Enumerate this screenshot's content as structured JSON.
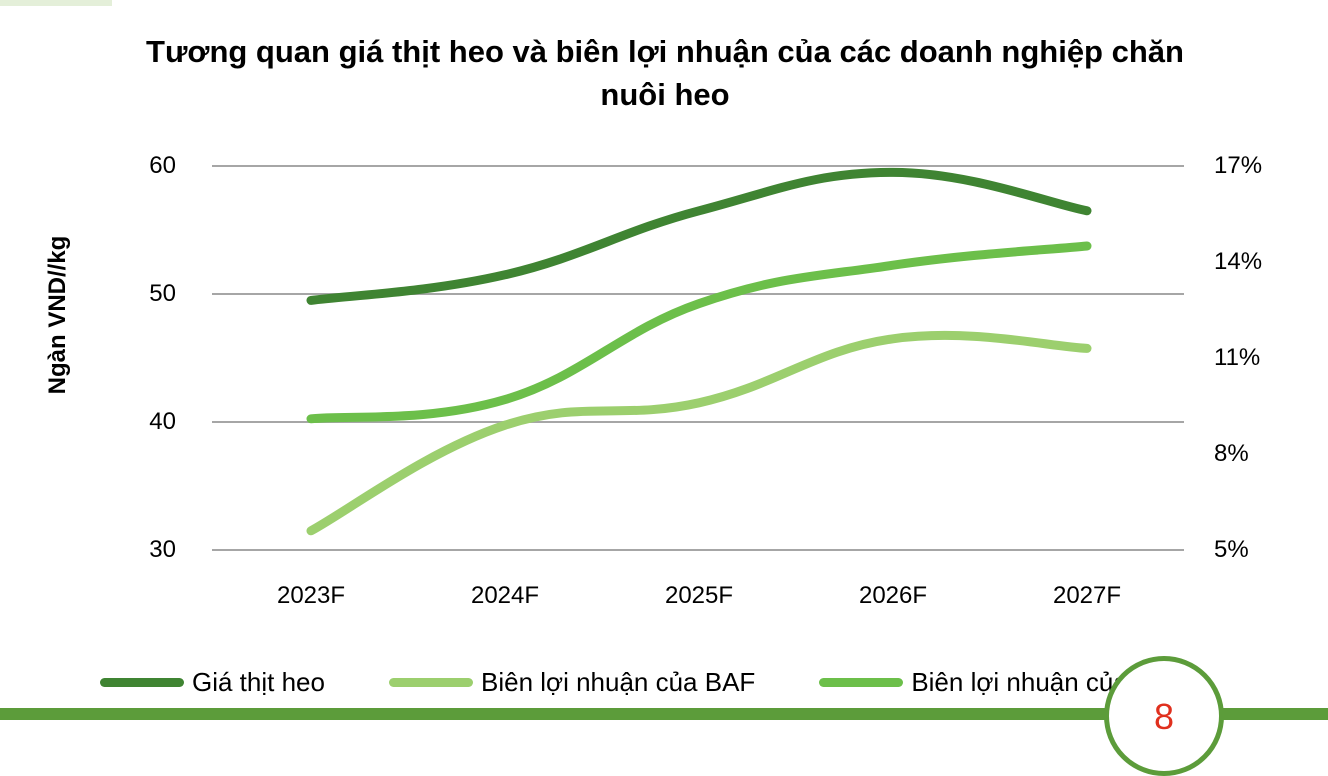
{
  "page": {
    "number": "8"
  },
  "colors": {
    "accent": "#5c9c3a",
    "page_number": "#e0301e",
    "grid": "#a6a6a6"
  },
  "chart_data": {
    "type": "line",
    "title": "Tương quan giá thịt heo và biên lợi nhuận của các doanh nghiệp chăn nuôi heo",
    "xlabel": "",
    "ylabel": "Ngàn VND//kg",
    "categories": [
      "2023F",
      "2024F",
      "2025F",
      "2026F",
      "2027F"
    ],
    "left_axis": {
      "ylim": [
        30,
        60
      ],
      "ticks": [
        "60",
        "50",
        "40",
        "30"
      ]
    },
    "right_axis": {
      "ylim": [
        5,
        17
      ],
      "ticks": [
        "17%",
        "14%",
        "11%",
        "8%",
        "5%"
      ]
    },
    "grid": true,
    "legend_position": "bottom",
    "series": [
      {
        "name": "Giá thịt heo",
        "axis": "left",
        "color": "#3f8432",
        "values": [
          49.5,
          51.5,
          56.5,
          59.5,
          56.5
        ]
      },
      {
        "name": "Biên lợi nhuận của BAF",
        "axis": "right",
        "color": "#9ccf6e",
        "values": [
          5.6,
          8.9,
          9.6,
          11.6,
          11.3
        ]
      },
      {
        "name": "Biên lợi nhuận của DBC",
        "axis": "right",
        "color": "#6cbf4a",
        "values": [
          9.1,
          9.7,
          12.7,
          13.9,
          14.5
        ]
      }
    ]
  }
}
